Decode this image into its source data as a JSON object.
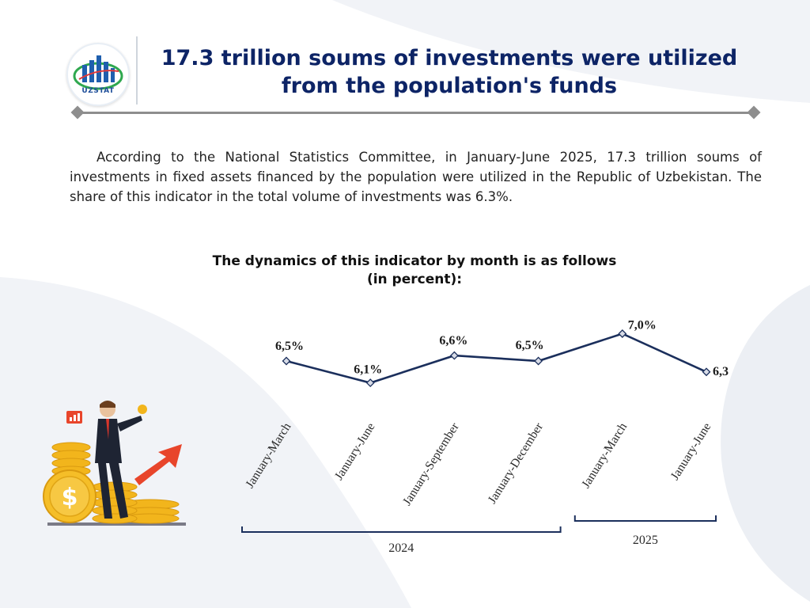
{
  "header": {
    "logo_text": "UZSTAT",
    "title_line1": "17.3 trillion soums of investments were utilized",
    "title_line2": "from the population's funds"
  },
  "body": {
    "paragraph": "According to the National Statistics Committee, in January-June 2025, 17.3 trillion soums of investments in fixed assets financed by the population were utilized in the Republic of Uzbekistan. The share of this indicator in the total volume of investments was 6.3%."
  },
  "chart_title": {
    "line1": "The dynamics of this indicator by month is as follows",
    "line2": "(in percent):"
  },
  "chart_data": {
    "type": "line",
    "title": "The dynamics of this indicator by month is as follows (in percent):",
    "categories": [
      "January-March",
      "January-June",
      "January-September",
      "January-December",
      "January-March",
      "January-June"
    ],
    "values": [
      6.5,
      6.1,
      6.6,
      6.5,
      7.0,
      6.3
    ],
    "data_labels": [
      "6,5%",
      "6,1%",
      "6,6%",
      "6,5%",
      "7,0%",
      "6,3"
    ],
    "groups": [
      {
        "label": "2024",
        "from": 0,
        "to": 3
      },
      {
        "label": "2025",
        "from": 4,
        "to": 5
      }
    ],
    "ylim": [
      5.5,
      7.5
    ],
    "grid": false,
    "line_color": "#1b2f5c"
  },
  "colors": {
    "title": "#0d2466",
    "line": "#1b2f5c",
    "background_shape": "#eef1f6"
  }
}
